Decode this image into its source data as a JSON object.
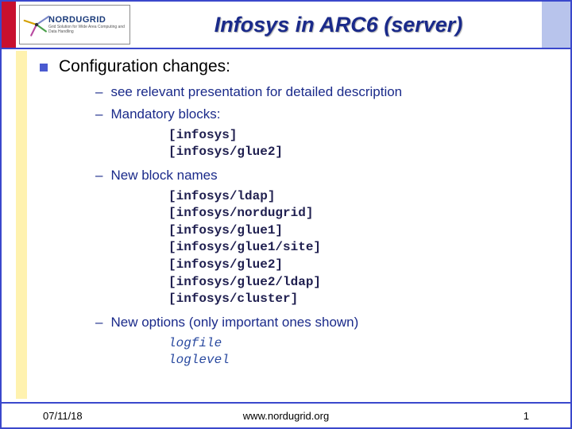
{
  "colors": {
    "frame": "#3a48cc",
    "header_red": "#c8102e",
    "header_blue": "#b8c4ec",
    "left_stripe": "#fff2af",
    "bullet_square": "#4a5ad0",
    "title_color": "#1a2a8a",
    "sub_text_color": "#1a2a8a",
    "code_color": "#202050",
    "code_italic_color": "#2a4aa0"
  },
  "logo": {
    "name": "NORDUGRID",
    "tagline": "Grid Solution for Wide Area Computing and Data Handling"
  },
  "title": "Infosys in ARC6 (server)",
  "bullet": "Configuration changes:",
  "subs": [
    {
      "text": "see relevant presentation for detailed description",
      "code": [],
      "code_style": "bold"
    },
    {
      "text": "Mandatory blocks:",
      "code": [
        "[infosys]",
        "[infosys/glue2]"
      ],
      "code_style": "bold"
    },
    {
      "text": "New block names",
      "code": [
        "[infosys/ldap]",
        "[infosys/nordugrid]",
        "[infosys/glue1]",
        "[infosys/glue1/site]",
        "[infosys/glue2]",
        "[infosys/glue2/ldap]",
        "[infosys/cluster]"
      ],
      "code_style": "bold"
    },
    {
      "text": "New options (only important ones shown)",
      "code": [
        "logfile",
        "loglevel"
      ],
      "code_style": "italic"
    }
  ],
  "footer": {
    "date": "07/11/18",
    "url": "www.nordugrid.org",
    "page": "1"
  }
}
